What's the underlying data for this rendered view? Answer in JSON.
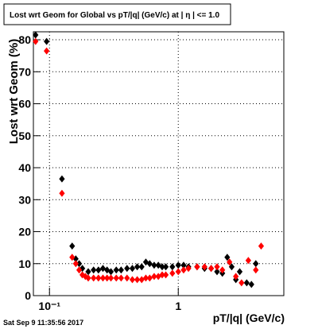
{
  "chart_data": {
    "type": "scatter",
    "title": "Lost wrt Geom for Global vs pT/|q| (GeV/c) at |  η | <= 1.0",
    "x_label": "pT/|q| (GeV/c)",
    "y_label": "Lost wrt Geom (%)",
    "footer": "Sat Sep  9 11:35:56 2017",
    "x_log": true,
    "grid": true,
    "xlim": [
      0.075,
      6.6
    ],
    "ylim": [
      0,
      82.5
    ],
    "xticks": [
      {
        "value": 0.1,
        "label": "10⁻¹"
      },
      1
    ],
    "yticks": [
      0,
      10,
      20,
      30,
      40,
      50,
      60,
      70,
      80
    ],
    "series": [
      {
        "color": "#000000",
        "x": [
          0.078,
          0.095,
          0.125,
          0.15,
          0.16,
          0.17,
          0.18,
          0.2,
          0.22,
          0.24,
          0.26,
          0.28,
          0.3,
          0.33,
          0.36,
          0.4,
          0.44,
          0.48,
          0.52,
          0.56,
          0.6,
          0.65,
          0.7,
          0.75,
          0.8,
          0.9,
          1.0,
          1.1,
          1.2,
          1.4,
          1.6,
          1.8,
          2.0,
          2.2,
          2.4,
          2.6,
          2.8,
          3.0,
          3.4,
          3.7,
          4.0
        ],
        "values": [
          81.5,
          79.5,
          36.5,
          15.5,
          11.5,
          10,
          8.5,
          7.5,
          8,
          8,
          8.5,
          8,
          7.5,
          8,
          8,
          8.5,
          8.5,
          9,
          9,
          10.5,
          10,
          9.5,
          9.5,
          9,
          9,
          9,
          9.5,
          9.5,
          9,
          9,
          8.5,
          8.5,
          7.5,
          7,
          12,
          9,
          5,
          7.5,
          4,
          3.5,
          10
        ]
      },
      {
        "color": "#ff0000",
        "x": [
          0.078,
          0.095,
          0.125,
          0.15,
          0.16,
          0.17,
          0.18,
          0.19,
          0.2,
          0.22,
          0.24,
          0.26,
          0.28,
          0.3,
          0.33,
          0.36,
          0.4,
          0.44,
          0.48,
          0.52,
          0.56,
          0.6,
          0.65,
          0.7,
          0.75,
          0.8,
          0.9,
          1.0,
          1.1,
          1.2,
          1.4,
          1.6,
          1.8,
          2.0,
          2.2,
          2.5,
          2.8,
          3.1,
          3.5,
          4.0,
          4.4
        ],
        "values": [
          79.5,
          76.5,
          32,
          12,
          10,
          8,
          6.5,
          6,
          5.5,
          5.5,
          5.5,
          5.5,
          5.5,
          5.5,
          5.5,
          5.5,
          5.5,
          5,
          5,
          5,
          5.5,
          5.5,
          6,
          6,
          6.5,
          6.5,
          7,
          7.5,
          8,
          8.5,
          9,
          9,
          8.5,
          9,
          8,
          10.5,
          6,
          4,
          11,
          8,
          15.5
        ]
      }
    ]
  }
}
